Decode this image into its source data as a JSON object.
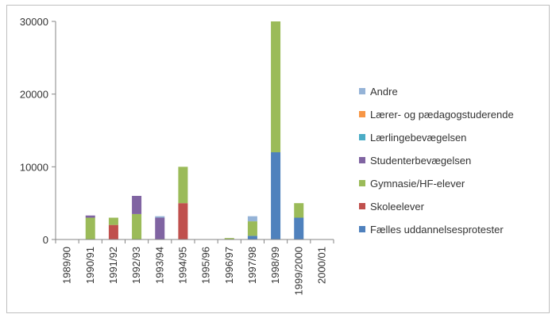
{
  "chart_data": {
    "type": "bar",
    "stacked": true,
    "categories": [
      "1989/90",
      "1990/91",
      "1991/92",
      "1992/93",
      "1993/94",
      "1994/95",
      "1995/96",
      "1996/97",
      "1997/98",
      "1998/99",
      "1999/2000",
      "2000/01"
    ],
    "series": [
      {
        "name": "Fælles uddannelsesprotester",
        "color": "#4f81bd",
        "values": [
          0,
          0,
          0,
          0,
          0,
          0,
          0,
          0,
          500,
          12000,
          3000,
          0
        ]
      },
      {
        "name": "Skoleelever",
        "color": "#c0504d",
        "values": [
          0,
          0,
          2000,
          0,
          0,
          5000,
          0,
          0,
          0,
          0,
          0,
          0
        ]
      },
      {
        "name": "Gymnasie/HF-elever",
        "color": "#9bbb59",
        "values": [
          0,
          3000,
          1000,
          3500,
          0,
          5000,
          0,
          200,
          2000,
          18000,
          2000,
          0
        ]
      },
      {
        "name": "Studenterbevægelsen",
        "color": "#8064a2",
        "values": [
          0,
          300,
          0,
          2500,
          3000,
          0,
          0,
          0,
          0,
          0,
          0,
          0
        ]
      },
      {
        "name": "Lærlingebevægelsen",
        "color": "#4bacc6",
        "values": [
          0,
          0,
          0,
          0,
          0,
          0,
          0,
          0,
          0,
          0,
          0,
          0
        ]
      },
      {
        "name": "Lærer- og pædagogstuderende",
        "color": "#f79646",
        "values": [
          0,
          0,
          0,
          0,
          0,
          0,
          0,
          0,
          0,
          0,
          0,
          0
        ]
      },
      {
        "name": "Andre",
        "color": "#95b3d7",
        "values": [
          0,
          0,
          0,
          0,
          200,
          0,
          0,
          0,
          700,
          0,
          0,
          0
        ]
      }
    ],
    "legend_order": [
      "Andre",
      "Lærer- og pædagogstuderende",
      "Lærlingebevægelsen",
      "Studenterbevægelsen",
      "Gymnasie/HF-elever",
      "Skoleelever",
      "Fælles uddannelsesprotester"
    ],
    "y_ticks": [
      "0",
      "10000",
      "20000",
      "30000"
    ],
    "ylim": [
      0,
      30000
    ],
    "grid": false,
    "legend_position": "right"
  }
}
